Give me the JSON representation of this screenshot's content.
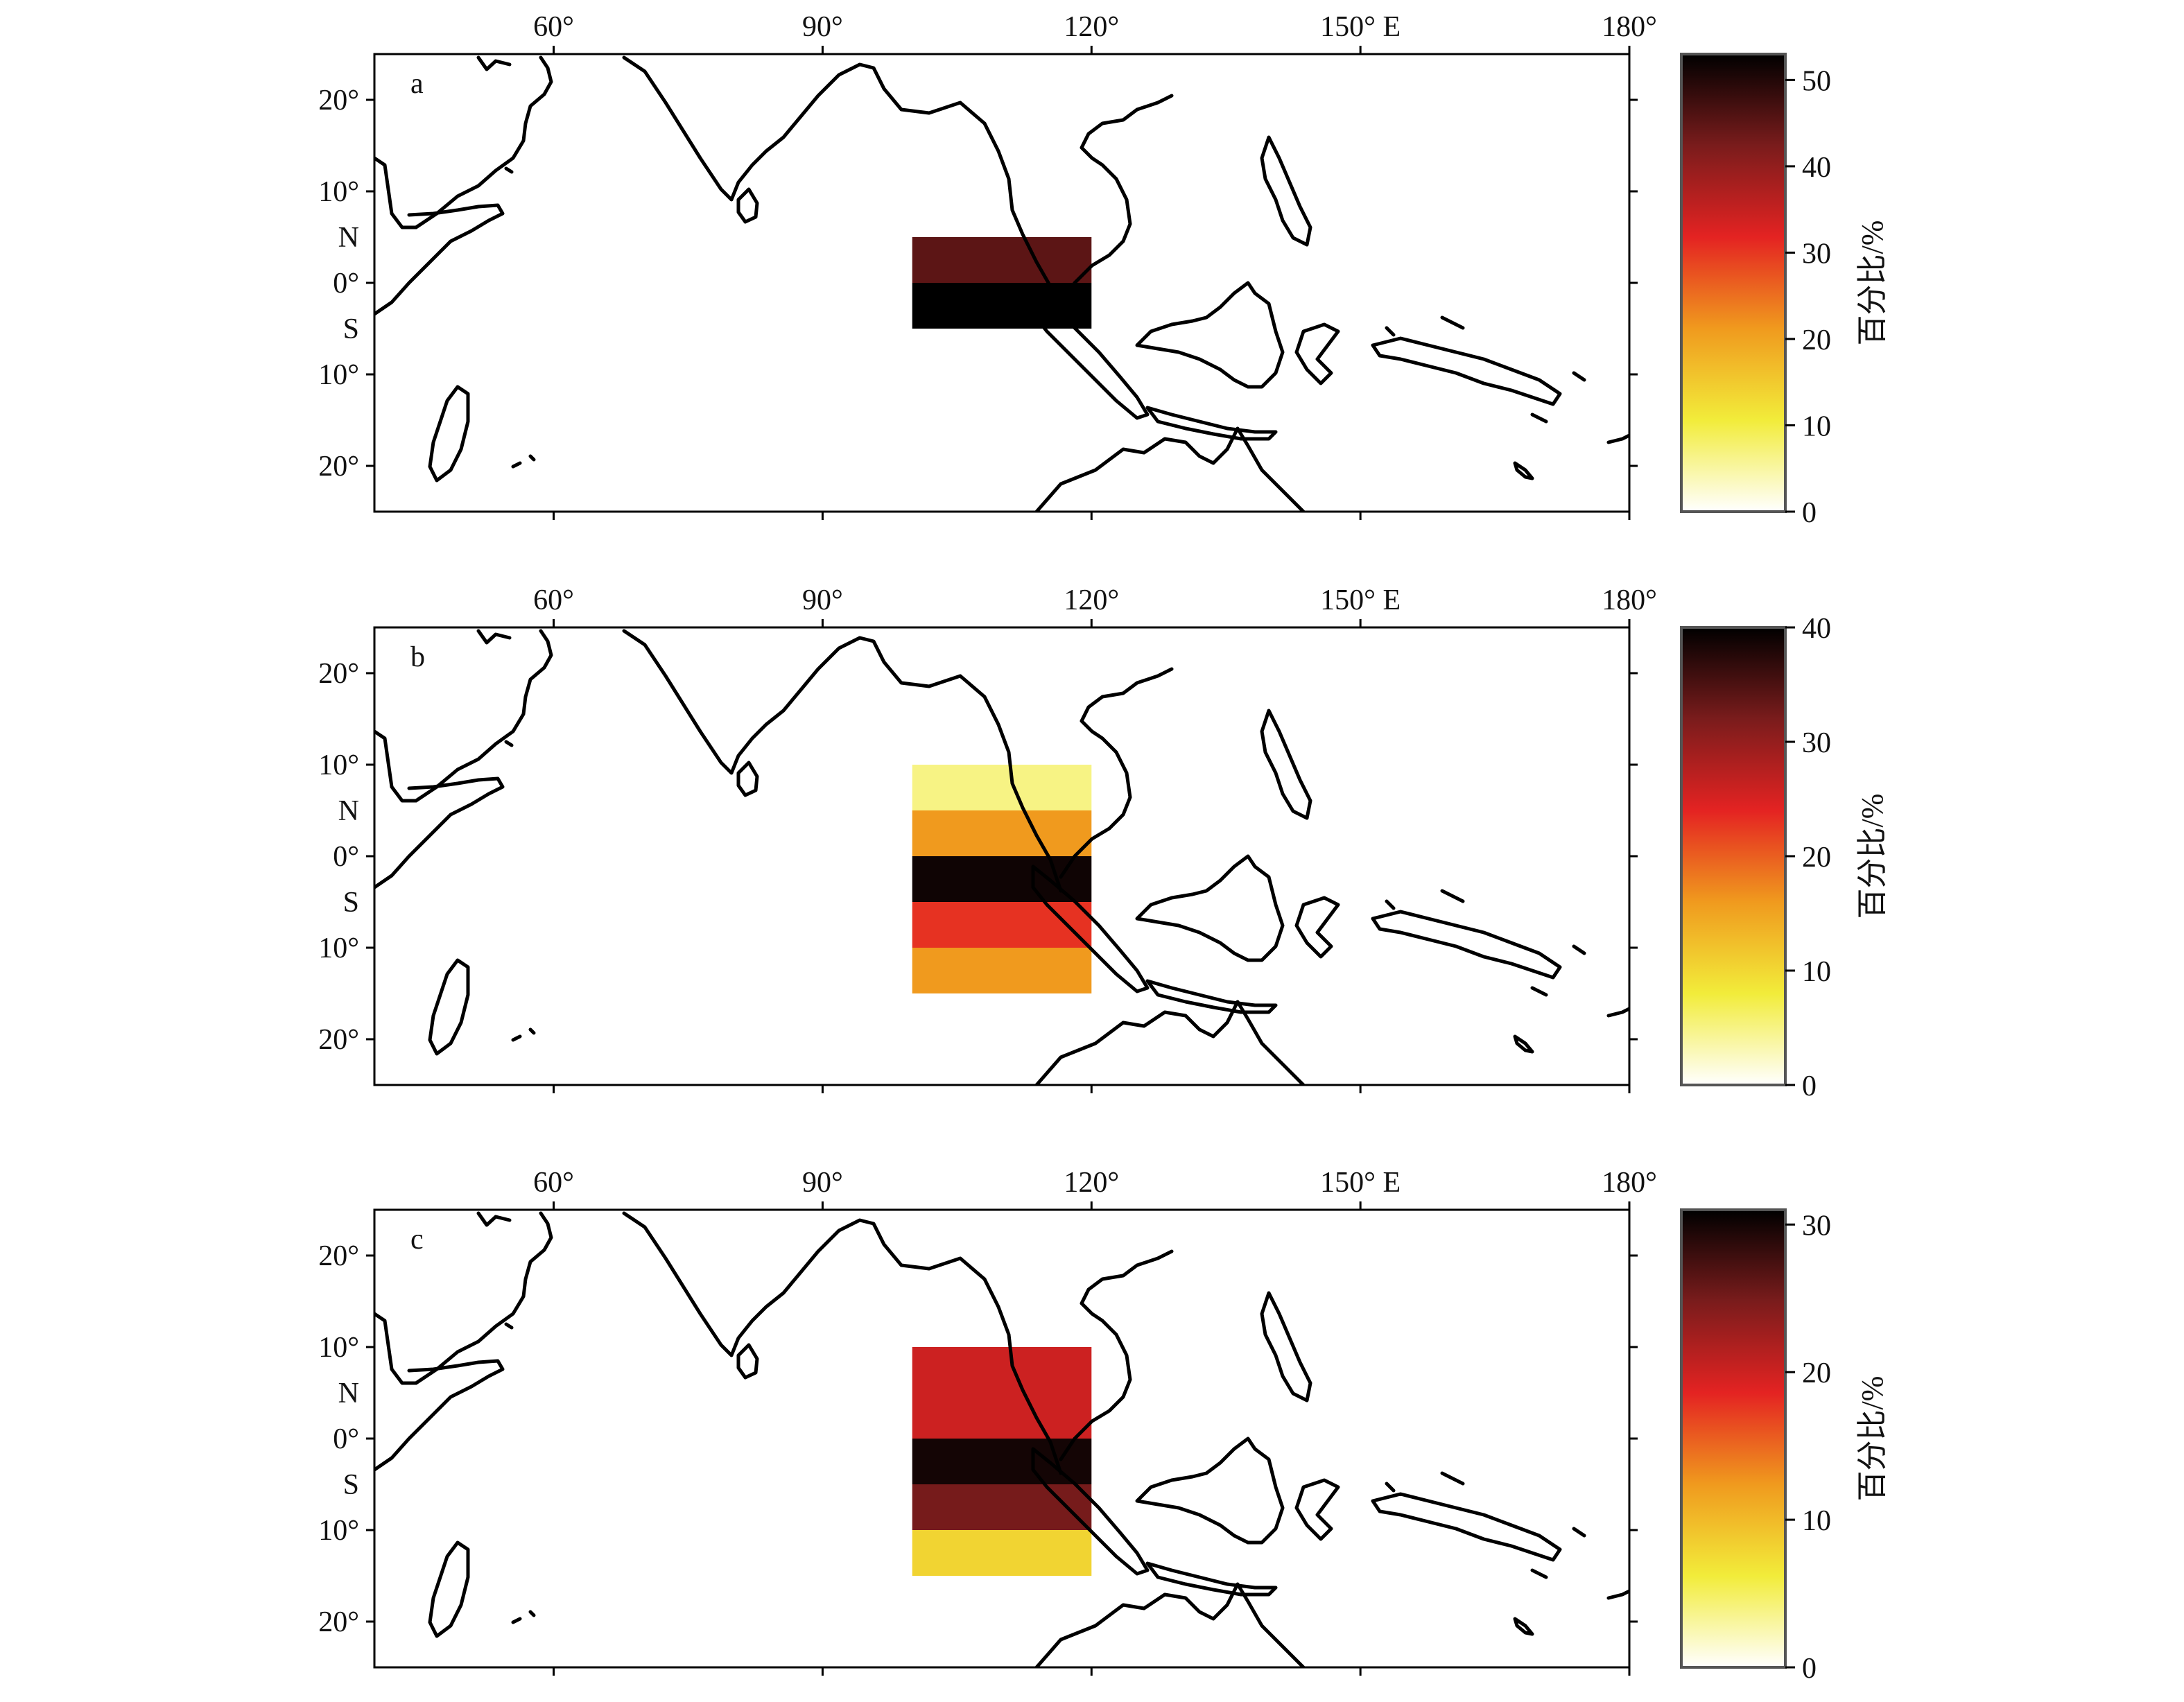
{
  "figure": {
    "lon_ticks": [
      "60°",
      "90°",
      "120°",
      "150° E",
      "180°"
    ],
    "lon_values": [
      60,
      90,
      120,
      150,
      180
    ],
    "lat_ticks": [
      {
        "label": "20°",
        "lat": 20
      },
      {
        "label": "10°",
        "lat": 10
      },
      {
        "label": "N",
        "lat": 5
      },
      {
        "label": "0°",
        "lat": 0
      },
      {
        "label": "S",
        "lat": -5
      },
      {
        "label": "10°",
        "lat": -10
      },
      {
        "label": "20°",
        "lat": -20
      }
    ],
    "colorbar_label": "百分比/%",
    "colormap": [
      "#ffffff",
      "#f2ec3a",
      "#f09a1e",
      "#e42322",
      "#7a1c1c",
      "#000000"
    ]
  },
  "chart_data": [
    {
      "type": "heatmap",
      "panel_label": "a",
      "xlim": [
        40,
        180
      ],
      "ylim": [
        -25,
        25
      ],
      "colorbar_ticks": [
        0,
        10,
        20,
        30,
        40,
        50
      ],
      "colorbar_range": [
        0,
        53
      ],
      "cells": [
        {
          "lon": [
            100,
            120
          ],
          "lat": [
            0,
            5
          ],
          "value": 45
        },
        {
          "lon": [
            100,
            120
          ],
          "lat": [
            -5,
            0
          ],
          "value": 53
        }
      ]
    },
    {
      "type": "heatmap",
      "panel_label": "b",
      "xlim": [
        40,
        180
      ],
      "ylim": [
        -25,
        25
      ],
      "colorbar_ticks": [
        0,
        10,
        20,
        30,
        40
      ],
      "colorbar_range": [
        0,
        40
      ],
      "cells": [
        {
          "lon": [
            100,
            120
          ],
          "lat": [
            5,
            10
          ],
          "value": 5
        },
        {
          "lon": [
            100,
            120
          ],
          "lat": [
            0,
            5
          ],
          "value": 16
        },
        {
          "lon": [
            100,
            120
          ],
          "lat": [
            -5,
            0
          ],
          "value": 39
        },
        {
          "lon": [
            100,
            120
          ],
          "lat": [
            -10,
            -5
          ],
          "value": 23
        },
        {
          "lon": [
            100,
            120
          ],
          "lat": [
            -15,
            -10
          ],
          "value": 16
        }
      ]
    },
    {
      "type": "heatmap",
      "panel_label": "c",
      "xlim": [
        40,
        180
      ],
      "ylim": [
        -25,
        25
      ],
      "colorbar_ticks": [
        0,
        10,
        20,
        30
      ],
      "colorbar_range": [
        0,
        31
      ],
      "cells": [
        {
          "lon": [
            100,
            120
          ],
          "lat": [
            5,
            10
          ],
          "value": 20
        },
        {
          "lon": [
            100,
            120
          ],
          "lat": [
            0,
            5
          ],
          "value": 20
        },
        {
          "lon": [
            100,
            120
          ],
          "lat": [
            -5,
            0
          ],
          "value": 30
        },
        {
          "lon": [
            100,
            120
          ],
          "lat": [
            -10,
            -5
          ],
          "value": 25
        },
        {
          "lon": [
            100,
            120
          ],
          "lat": [
            -15,
            -10
          ],
          "value": 8
        }
      ]
    }
  ]
}
